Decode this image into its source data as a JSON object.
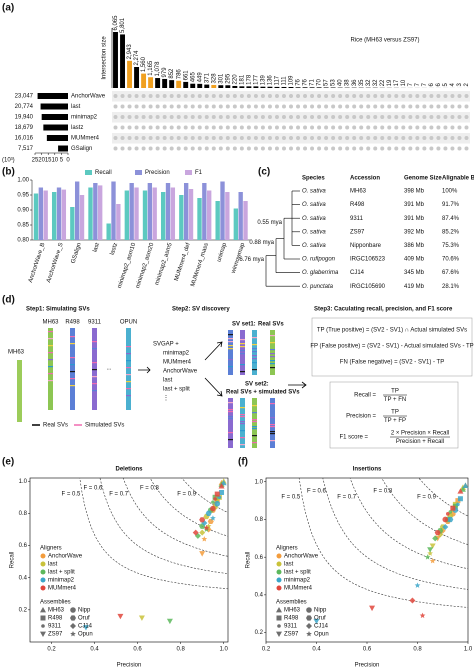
{
  "panel_labels": [
    "(a)",
    "(b)",
    "(c)",
    "(d)",
    "(e)",
    "(f)"
  ],
  "chart_data": [
    {
      "type": "upset",
      "title": "Rice (MH63 versus ZS97)",
      "ylabel": "Intersection size",
      "values": [
        6065,
        5801,
        2943,
        2274,
        1560,
        1165,
        1078,
        979,
        852,
        786,
        661,
        465,
        449,
        371,
        328,
        301,
        295,
        220,
        181,
        178,
        177,
        139,
        136,
        117,
        111,
        109,
        76,
        76,
        71,
        70,
        57,
        53,
        40,
        38,
        36,
        35,
        32,
        32,
        22,
        19,
        17,
        10,
        7,
        7,
        7,
        6,
        6,
        5,
        4,
        3,
        2
      ],
      "value_labels": [
        "6,065",
        "5,801",
        "2,943",
        "2,274",
        "1,560",
        "1,165",
        "1,078",
        "979",
        "852",
        "786",
        "661",
        "465",
        "449",
        "371",
        "328",
        "301",
        "295",
        "220",
        "181",
        "178",
        "177",
        "139",
        "136",
        "117",
        "111",
        "109",
        "76",
        "76",
        "71",
        "70",
        "57",
        "53",
        "40",
        "38",
        "36",
        "35",
        "32",
        "32",
        "22",
        "19",
        "17",
        "10",
        "7",
        "7",
        "7",
        "6",
        "6",
        "5",
        "4",
        "3",
        "2"
      ],
      "colors": [
        "#000000",
        "#000000",
        "#f0a020",
        "#000000",
        "#f0a020",
        "#f0a020",
        "#000000",
        "#000000",
        "#000000",
        "#f0a020",
        "#000000",
        "#000000",
        "#000000",
        "#000000",
        "#f0a020",
        "#000000",
        "#000000",
        "#000000",
        "#000000",
        "#000000",
        "#000000",
        "#000000",
        "#000000",
        "#000000",
        "#000000",
        "#000000",
        "#000000",
        "#000000",
        "#000000",
        "#000000",
        "#000000",
        "#000000",
        "#000000",
        "#000000",
        "#000000",
        "#000000",
        "#000000",
        "#000000",
        "#000000",
        "#000000",
        "#000000",
        "#000000",
        "#000000",
        "#000000",
        "#000000",
        "#000000",
        "#000000",
        "#000000",
        "#000000",
        "#000000",
        "#000000"
      ],
      "sets": {
        "names": [
          "AnchorWave",
          "last",
          "minimap2",
          "lastz",
          "MUMmer4",
          "GSalign"
        ],
        "values": [
          23.047,
          20.774,
          19.94,
          18.679,
          16.016,
          7.517
        ],
        "value_labels": [
          "23,047",
          "20,774",
          "19,940",
          "18,679",
          "16,016",
          "7,517"
        ],
        "xlim": [
          25,
          0
        ],
        "xticks": [
          25,
          20,
          15,
          10,
          5,
          0
        ],
        "xunit": "(10³)",
        "color": "#000000"
      }
    },
    {
      "type": "bar",
      "categories": [
        "AnchorWave_B",
        "AnchorWave_S",
        "GSalign",
        "last",
        "lastz",
        "minimap2_asm10",
        "minimap2_asm20",
        "minimap2_asm5",
        "MUMmer4_def",
        "MUMmer4_mass",
        "unimap",
        "winnowmap"
      ],
      "series": [
        {
          "name": "Recall",
          "color": "#5cc9c0",
          "values": [
            0.955,
            0.96,
            0.91,
            0.975,
            0.855,
            0.965,
            0.965,
            0.96,
            0.95,
            0.94,
            0.93,
            0.905
          ]
        },
        {
          "name": "Precision",
          "color": "#8c91d9",
          "values": [
            0.975,
            0.975,
            0.995,
            0.99,
            0.995,
            0.99,
            0.99,
            0.99,
            0.99,
            0.99,
            0.995,
            0.96
          ]
        },
        {
          "name": "F1",
          "color": "#c9a6de",
          "values": [
            0.965,
            0.968,
            0.95,
            0.982,
            0.92,
            0.975,
            0.975,
            0.975,
            0.97,
            0.965,
            0.96,
            0.93
          ]
        }
      ],
      "ylim": [
        0.8,
        1.0
      ],
      "yticks": [
        {
          "value": 0.8,
          "label": "0.80"
        },
        {
          "value": 0.85,
          "label": "0.85"
        },
        {
          "value": 0.9,
          "label": "0.90"
        },
        {
          "value": 0.95,
          "label": "0.95"
        },
        {
          "value": 1.0,
          "label": "1.00"
        }
      ],
      "legend": "top"
    },
    {
      "type": "scatter",
      "title": "Deletions",
      "xlabel": "Precision",
      "ylabel": "Recall",
      "xlim": [
        0.1,
        1.02
      ],
      "ylim": [
        0,
        1.02
      ],
      "xticks": [
        0.2,
        0.4,
        0.6,
        0.8,
        {
          "value": 1,
          "label": "1.0"
        }
      ],
      "yticks": [
        0.2,
        0.4,
        0.6,
        0.8,
        {
          "value": 1,
          "label": "1.0"
        }
      ],
      "f_curves": [
        {
          "value": 0.5,
          "label": "F = 0.5"
        },
        {
          "value": 0.6,
          "label": "F = 0.6"
        },
        {
          "value": 0.7,
          "label": "F = 0.7"
        },
        {
          "value": 0.8,
          "label": "F = 0.8"
        },
        {
          "value": 0.9,
          "label": "F = 0.9"
        }
      ],
      "legend_title": "Aligners",
      "assemblies": {
        "title": "Assemblies",
        "names": [
          "MH63",
          "Nipp",
          "R498",
          "Oruf",
          "9311",
          "CJ14",
          "ZS97",
          "Opun"
        ],
        "shapes": [
          "triangle-up",
          "circle",
          "square",
          "hexagon",
          "dot",
          "diamond",
          "triangle-down",
          "star"
        ]
      },
      "series": [
        {
          "name": "AnchorWave",
          "color": "#f39c3c",
          "x": [
            0.99,
            0.97,
            0.96,
            0.9,
            0.95,
            0.94,
            0.93,
            0.91
          ],
          "values": [
            0.99,
            0.88,
            0.86,
            0.55,
            0.82,
            0.75,
            0.7,
            0.64
          ],
          "assembly": [
            0,
            2,
            4,
            6,
            1,
            3,
            5,
            7
          ]
        },
        {
          "name": "last",
          "color": "#c9c23a",
          "x": [
            1.0,
            0.98,
            0.97,
            0.62,
            0.96,
            0.92,
            0.9,
            0.93
          ],
          "values": [
            1.0,
            0.9,
            0.88,
            0.15,
            0.84,
            0.78,
            0.68,
            0.72
          ],
          "assembly": [
            0,
            2,
            4,
            6,
            1,
            3,
            5,
            7
          ]
        },
        {
          "name": "last + split",
          "color": "#5cb85c",
          "x": [
            0.99,
            0.96,
            0.95,
            0.75,
            0.94,
            0.9,
            0.88,
            0.92
          ],
          "values": [
            0.98,
            0.9,
            0.87,
            0.13,
            0.82,
            0.72,
            0.66,
            0.7
          ],
          "assembly": [
            0,
            2,
            4,
            6,
            1,
            3,
            5,
            7
          ]
        },
        {
          "name": "minimap2",
          "color": "#3aa6c9",
          "x": [
            1.0,
            0.99,
            0.98,
            0.36,
            0.97,
            0.93,
            0.91,
            0.95
          ],
          "values": [
            0.99,
            0.93,
            0.9,
            0.09,
            0.86,
            0.8,
            0.74,
            0.77
          ],
          "assembly": [
            0,
            2,
            4,
            6,
            1,
            3,
            5,
            7
          ]
        },
        {
          "name": "MUMmer4",
          "color": "#e0463c",
          "x": [
            0.99,
            0.97,
            0.96,
            0.52,
            0.95,
            0.9,
            0.87,
            0.92
          ],
          "values": [
            0.97,
            0.92,
            0.89,
            0.16,
            0.83,
            0.76,
            0.68,
            0.71
          ],
          "assembly": [
            0,
            2,
            4,
            6,
            1,
            3,
            5,
            7
          ]
        }
      ]
    },
    {
      "type": "scatter",
      "title": "Insertions",
      "xlabel": "Precision",
      "ylabel": "Recall",
      "xlim": [
        0.2,
        1.0
      ],
      "ylim": [
        0.15,
        1.02
      ],
      "xticks": [
        0.2,
        0.4,
        0.6,
        0.8,
        {
          "value": 1,
          "label": "1.0"
        }
      ],
      "yticks": [
        0.2,
        0.4,
        0.6,
        0.8,
        {
          "value": 1,
          "label": "1.0"
        }
      ],
      "f_curves": [
        {
          "value": 0.5,
          "label": "F = 0.5"
        },
        {
          "value": 0.6,
          "label": "F = 0.6"
        },
        {
          "value": 0.7,
          "label": "F = 0.7"
        },
        {
          "value": 0.8,
          "label": "F = 0.8"
        },
        {
          "value": 0.9,
          "label": "F = 0.9"
        }
      ],
      "legend_title": "Aligners",
      "assemblies": {
        "title": "Assemblies",
        "names": [
          "MH63",
          "Nipp",
          "R498",
          "Oruf",
          "9311",
          "CJ14",
          "ZS97",
          "Opun"
        ],
        "shapes": [
          "triangle-up",
          "circle",
          "square",
          "hexagon",
          "dot",
          "diamond",
          "triangle-down",
          "star"
        ]
      },
      "series": [
        {
          "name": "AnchorWave",
          "color": "#f39c3c",
          "x": [
            0.99,
            0.96,
            0.95,
            0.88,
            0.94,
            0.92,
            0.9,
            0.86
          ],
          "values": [
            0.98,
            0.9,
            0.86,
            0.7,
            0.83,
            0.79,
            0.74,
            0.58
          ],
          "assembly": [
            0,
            2,
            4,
            6,
            1,
            3,
            5,
            7
          ]
        },
        {
          "name": "last",
          "color": "#c9c23a",
          "x": [
            0.98,
            0.95,
            0.94,
            0.86,
            0.93,
            0.9,
            0.89,
            0.85
          ],
          "values": [
            0.97,
            0.88,
            0.85,
            0.66,
            0.82,
            0.76,
            0.72,
            0.62
          ],
          "assembly": [
            0,
            2,
            4,
            6,
            1,
            3,
            5,
            7
          ]
        },
        {
          "name": "last + split",
          "color": "#5cb85c",
          "x": [
            0.98,
            0.95,
            0.93,
            0.85,
            0.92,
            0.89,
            0.87,
            0.84
          ],
          "values": [
            0.96,
            0.87,
            0.84,
            0.64,
            0.8,
            0.74,
            0.7,
            0.6
          ],
          "assembly": [
            0,
            2,
            4,
            6,
            1,
            3,
            5,
            7
          ]
        },
        {
          "name": "minimap2",
          "color": "#3aa6c9",
          "x": [
            0.99,
            0.97,
            0.96,
            0.4,
            0.95,
            0.93,
            0.91,
            0.8
          ],
          "values": [
            0.98,
            0.91,
            0.88,
            0.26,
            0.85,
            0.8,
            0.76,
            0.45
          ],
          "assembly": [
            0,
            2,
            4,
            6,
            1,
            3,
            5,
            7
          ]
        },
        {
          "name": "MUMmer4",
          "color": "#e0463c",
          "x": [
            0.97,
            0.94,
            0.92,
            0.62,
            0.91,
            0.88,
            0.78,
            0.82
          ],
          "values": [
            0.95,
            0.86,
            0.83,
            0.33,
            0.8,
            0.73,
            0.37,
            0.29
          ],
          "assembly": [
            0,
            2,
            4,
            6,
            1,
            3,
            5,
            7
          ]
        }
      ]
    }
  ],
  "table": {
    "columns": [
      "Species",
      "Accession",
      "Genome Size",
      "Alignable Base"
    ],
    "rows": [
      [
        "O. sativa",
        "MH63",
        "398 Mb",
        "100%"
      ],
      [
        "O. sativa",
        "R498",
        "391 Mb",
        "91.7%"
      ],
      [
        "O. sativa",
        "9311",
        "391 Mb",
        "87.4%"
      ],
      [
        "O. sativa",
        "ZS97",
        "392 Mb",
        "85.2%"
      ],
      [
        "O. sativa",
        "Nipponbare",
        "386 Mb",
        "75.3%"
      ],
      [
        "O. rufipogon",
        "IRGC106523",
        "409 Mb",
        "70.6%"
      ],
      [
        "O. glaberrima",
        "CJ14",
        "345 Mb",
        "67.6%"
      ],
      [
        "O. punctata",
        "IRGC105690",
        "419 Mb",
        "28.1%"
      ]
    ],
    "divergence": [
      "0.55 mya",
      "0.88 mya",
      "6.76 mya"
    ]
  },
  "diagram": {
    "steps": [
      "Step1: Simulating SVs",
      "Step2: SV discovery",
      "Step3: Caculating recall, precision, and F1 score"
    ],
    "reference": "MH63",
    "genomes": [
      "MH63",
      "R498",
      "9311",
      "OPUN"
    ],
    "ellipsis": "...",
    "tools": [
      "SVGAP +",
      "minimap2",
      "MUMmer4",
      "AnchorWave",
      "last",
      "last + split",
      "⋮"
    ],
    "sv_sets": [
      {
        "name": "SV set1:",
        "desc": "Real SVs"
      },
      {
        "name": "SV set2:",
        "desc": "Real SVs + simulated SVs"
      }
    ],
    "legend": [
      "Real SVs",
      "Simulated SVs"
    ],
    "definitions": [
      "TP (True positive) = (SV2 - SV1) ∩ Actual simulated SVs",
      "FP (False positive) = (SV2 - SV1) - Actual simulated SVs - TP",
      "FN (False negative) = (SV2 - SV1) - TP"
    ],
    "formulas": [
      {
        "name": "Recall =",
        "num": "TP",
        "den": "TP + FN"
      },
      {
        "name": "Precision =",
        "num": "TP",
        "den": "TP + FP"
      },
      {
        "name": "F1 score =",
        "num": "2 × Precision × Recall",
        "den": "Precision + Recall"
      }
    ]
  }
}
